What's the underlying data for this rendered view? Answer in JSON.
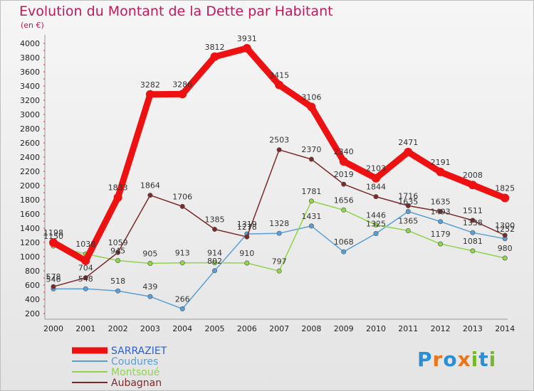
{
  "title": "Evolution du Montant de la Dette par Habitant",
  "unit": "(en €)",
  "logo": {
    "letters": [
      "P",
      "r",
      "o",
      "x",
      "i",
      "t",
      "i"
    ],
    "colors": [
      "#2b8fd6",
      "#e8761c",
      "#2b8fd6",
      "#e8761c",
      "#76b82a",
      "#2b8fd6",
      "#76b82a"
    ]
  },
  "chart_data": {
    "type": "line",
    "x": [
      "2000",
      "2001",
      "2002",
      "2003",
      "2004",
      "2005",
      "2006",
      "2007",
      "2008",
      "2009",
      "2010",
      "2011",
      "2012",
      "2013",
      "2014"
    ],
    "ylim": [
      200,
      4000
    ],
    "yticks": [
      "200",
      "400",
      "600",
      "800",
      "1000",
      "1200",
      "1400",
      "1600",
      "1800",
      "2000",
      "2200",
      "2400",
      "2600",
      "2800",
      "3000",
      "3200",
      "3400",
      "3600",
      "3800",
      "4000"
    ],
    "grid": false,
    "legend_position": "bottom-left",
    "series": [
      {
        "name": "SARRAZIET",
        "color": "#ee1111",
        "values": [
          1198,
          942,
          1833,
          3282,
          3286,
          3812,
          3931,
          3415,
          3106,
          2340,
          2103,
          2471,
          2191,
          2008,
          1825
        ],
        "labels": [
          "1198",
          "",
          "1833",
          "3282",
          "3286",
          "3812",
          "3931",
          "3415",
          "3106",
          "2340",
          "2103",
          "2471",
          "2191",
          "2008",
          "1825"
        ]
      },
      {
        "name": "Coudures",
        "color": "#5a9fd4",
        "values": [
          546,
          548,
          518,
          439,
          266,
          802,
          1319,
          1328,
          1431,
          1068,
          1325,
          1635,
          1493,
          1338,
          1252
        ],
        "labels": [
          "546",
          "548",
          "518",
          "439",
          "266",
          "802",
          "1319",
          "1328",
          "1431",
          "1068",
          "1325",
          "1635",
          "1493",
          "1338",
          "1252"
        ]
      },
      {
        "name": "Montsoué",
        "color": "#8fd44a",
        "values": [
          1150,
          1038,
          945,
          905,
          913,
          914,
          910,
          797,
          1781,
          1656,
          1446,
          1365,
          1179,
          1081,
          980
        ],
        "labels": [
          "1150",
          "1038",
          "945",
          "905",
          "913",
          "914",
          "910",
          "797",
          "1781",
          "1656",
          "1446",
          "1365",
          "1179",
          "1081",
          "980"
        ]
      },
      {
        "name": "Aubagnan",
        "color": "#7a2a2a",
        "values": [
          578,
          704,
          1059,
          1864,
          1706,
          1385,
          1278,
          2503,
          2370,
          2019,
          1844,
          1716,
          1635,
          1511,
          1300
        ],
        "labels": [
          "578",
          "704",
          "1059",
          "1864",
          "1706",
          "1385",
          "1278",
          "2503",
          "2370",
          "2019",
          "1844",
          "1716",
          "1635",
          "1511",
          "1300"
        ]
      }
    ]
  }
}
